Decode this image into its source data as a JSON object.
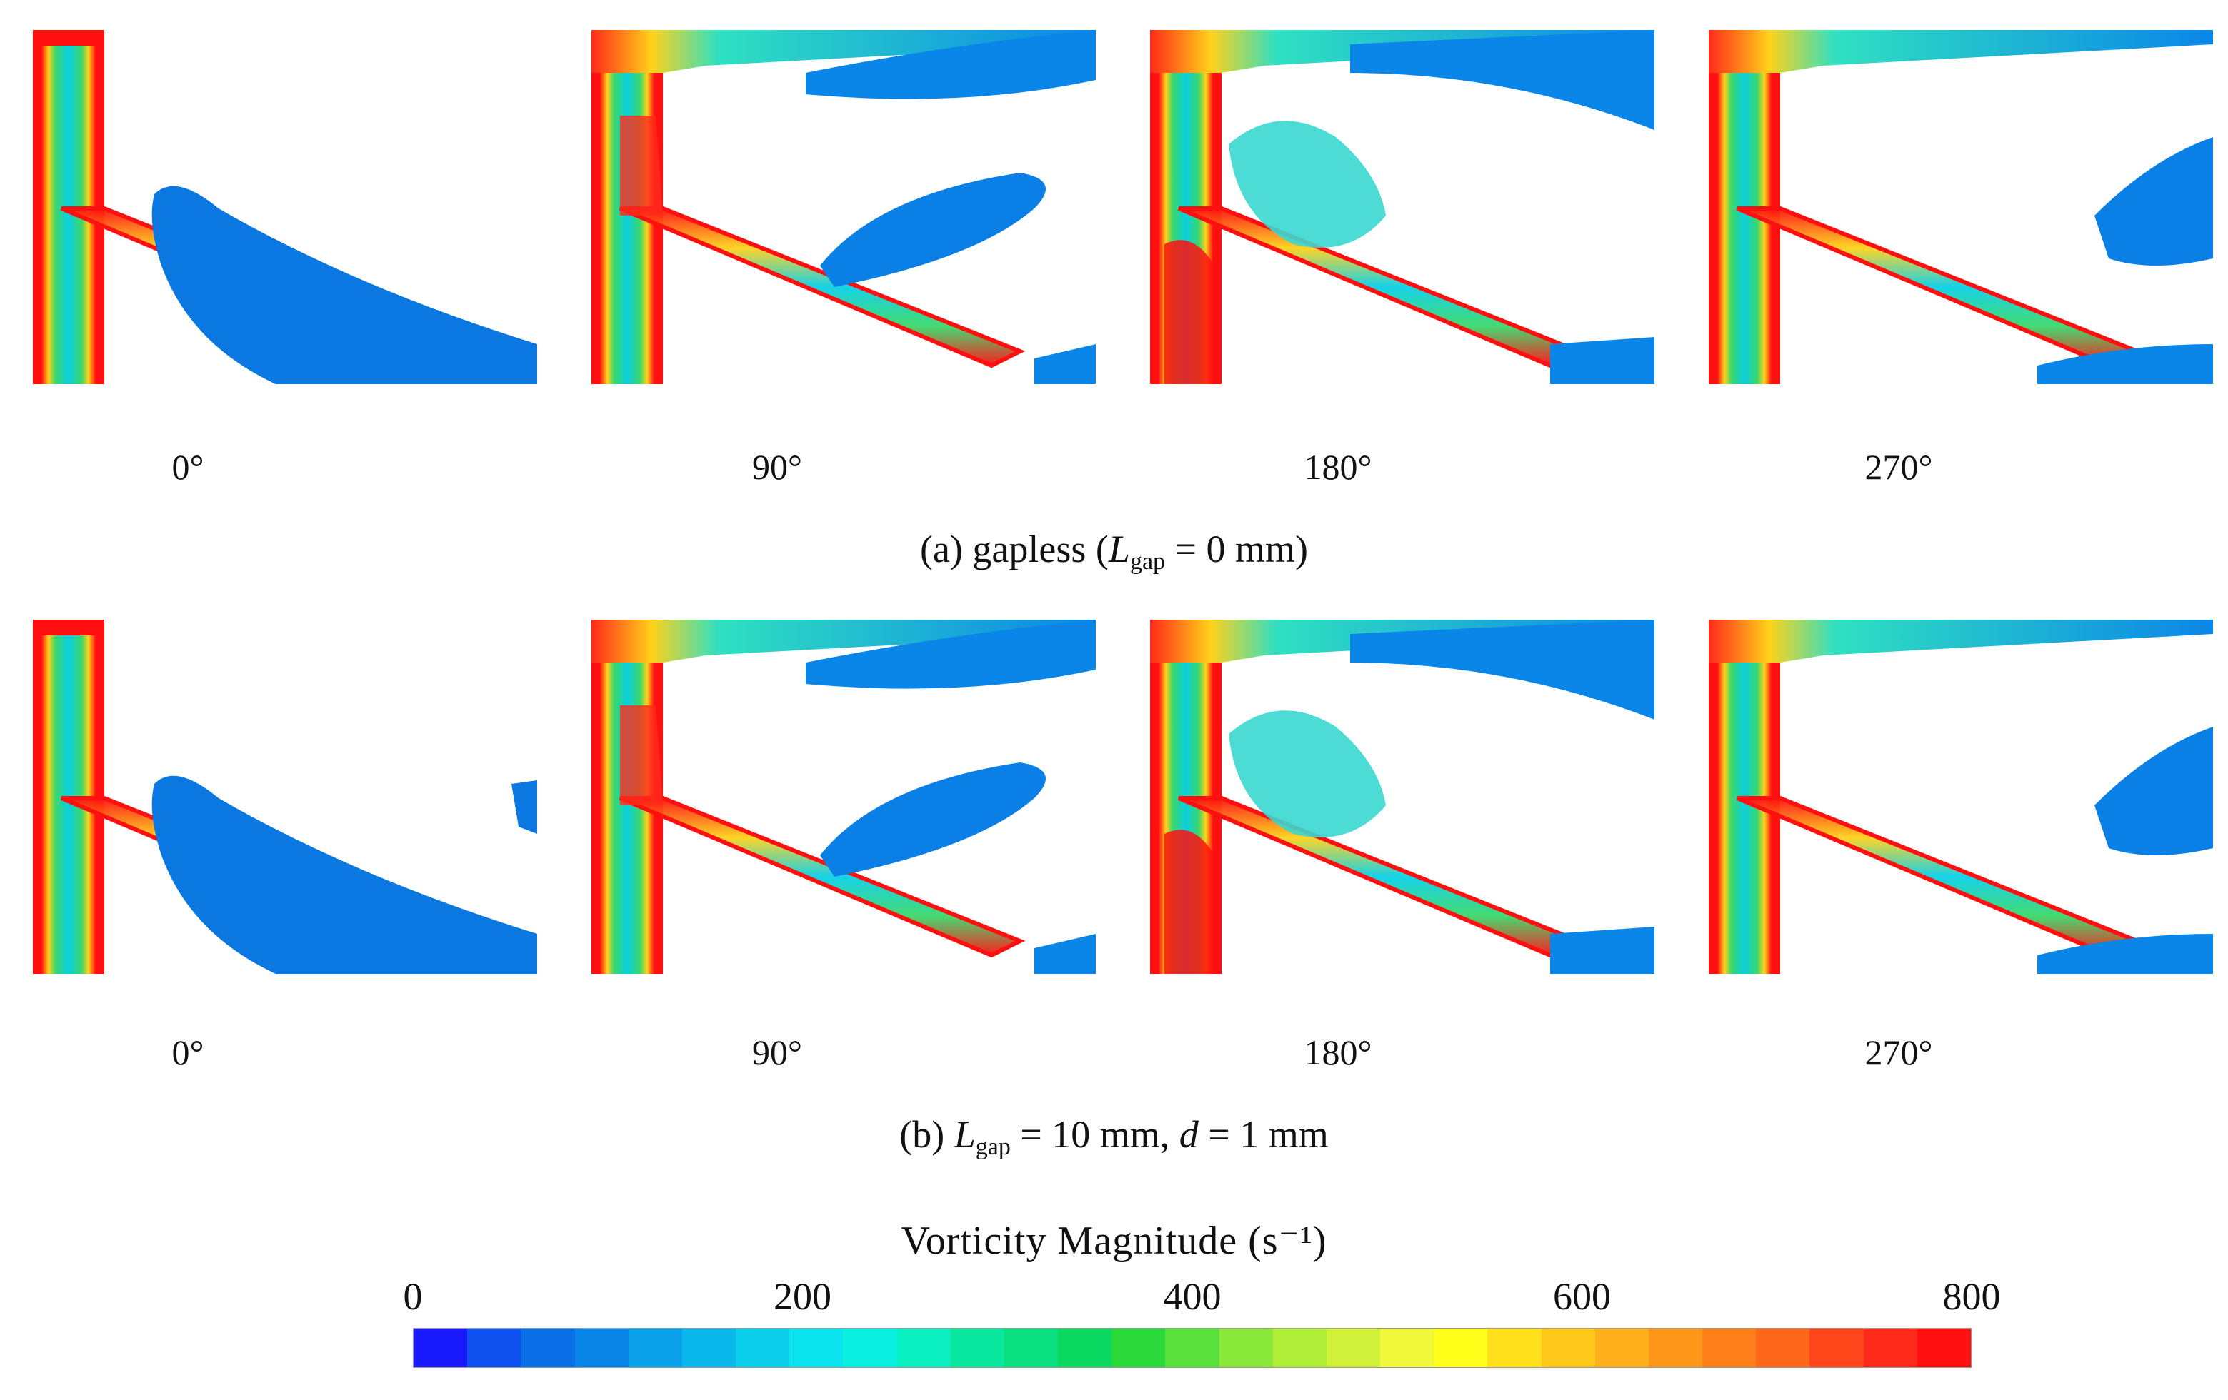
{
  "rows": [
    {
      "caption": {
        "prefix": "(a) gapless (",
        "var": "L",
        "sub": "gap",
        "suffix": " = 0 mm)"
      },
      "panels": [
        {
          "angle": "0°",
          "variant": 0
        },
        {
          "angle": "90°",
          "variant": 1
        },
        {
          "angle": "180°",
          "variant": 2
        },
        {
          "angle": "270°",
          "variant": 3
        }
      ]
    },
    {
      "caption": {
        "prefix": "(b) ",
        "var": "L",
        "sub": "gap",
        "mid": " = 10 mm, ",
        "var2": "d",
        "suffix": " = 1 mm"
      },
      "panels": [
        {
          "angle": "0°",
          "variant": 0
        },
        {
          "angle": "90°",
          "variant": 1
        },
        {
          "angle": "180°",
          "variant": 2
        },
        {
          "angle": "270°",
          "variant": 3
        }
      ]
    }
  ],
  "colorbar": {
    "title": "Vorticity Magnitude (s⁻¹)",
    "ticks": [
      "0",
      "200",
      "400",
      "600",
      "800"
    ],
    "tick_values": [
      0,
      200,
      400,
      600,
      800
    ],
    "min": 0,
    "max": 800,
    "colors": [
      "#1a1aff",
      "#1052f0",
      "#0a6ee6",
      "#0a86e8",
      "#0aa0ea",
      "#0ab8ec",
      "#0acdea",
      "#0ae4ee",
      "#0af0e0",
      "#0af0c0",
      "#0ae8a0",
      "#0ae080",
      "#0ad860",
      "#2ad83a",
      "#5ae03a",
      "#8ae83a",
      "#b0ee3a",
      "#d0f03a",
      "#f0f83a",
      "#ffff1a",
      "#ffe01a",
      "#ffc81a",
      "#ffb01a",
      "#ff981a",
      "#ff801a",
      "#ff681a",
      "#ff461a",
      "#ff2a1a",
      "#ff1010"
    ]
  }
}
